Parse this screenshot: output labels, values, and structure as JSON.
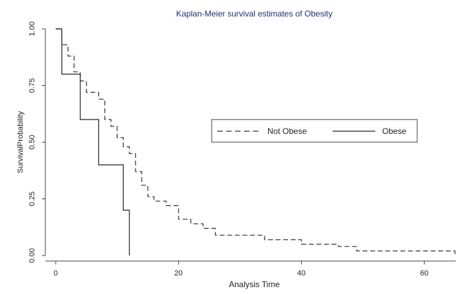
{
  "chart_data": {
    "type": "line",
    "subtype": "step",
    "title": "Kaplan-Meier survival estimates of Obesity",
    "xlabel": "Analysis Time",
    "ylabel": "SurvivalProbability",
    "xlim": [
      0,
      65
    ],
    "ylim": [
      0,
      1
    ],
    "xticks": [
      0,
      20,
      40,
      60
    ],
    "xtick_labels": [
      "0",
      "20",
      "40",
      "60"
    ],
    "yticks": [
      0,
      0.25,
      0.5,
      0.75,
      1
    ],
    "ytick_labels": [
      "0.00",
      "0.25",
      "0.50",
      "0.75",
      "1.00"
    ],
    "grid": false,
    "legend_position": "center-right",
    "series": [
      {
        "name": "Not Obese",
        "style": "dashed",
        "color": "#333333",
        "x": [
          0,
          1,
          2,
          3,
          4,
          5,
          7,
          8,
          9,
          10,
          11,
          12,
          13,
          14,
          15,
          16,
          18,
          20,
          22,
          24,
          26,
          34,
          40,
          46,
          49,
          65
        ],
        "y": [
          1.0,
          0.93,
          0.88,
          0.81,
          0.77,
          0.72,
          0.69,
          0.6,
          0.57,
          0.52,
          0.48,
          0.45,
          0.37,
          0.31,
          0.26,
          0.24,
          0.22,
          0.16,
          0.14,
          0.12,
          0.09,
          0.07,
          0.05,
          0.04,
          0.02,
          0.0
        ]
      },
      {
        "name": "Obese",
        "style": "solid",
        "color": "#222222",
        "x": [
          0,
          1,
          4,
          7,
          11,
          12
        ],
        "y": [
          1.0,
          0.8,
          0.6,
          0.4,
          0.2,
          0.0
        ]
      }
    ]
  },
  "colors": {
    "title": "#1f2f6b",
    "axis": "#333333",
    "background": "#ffffff"
  }
}
